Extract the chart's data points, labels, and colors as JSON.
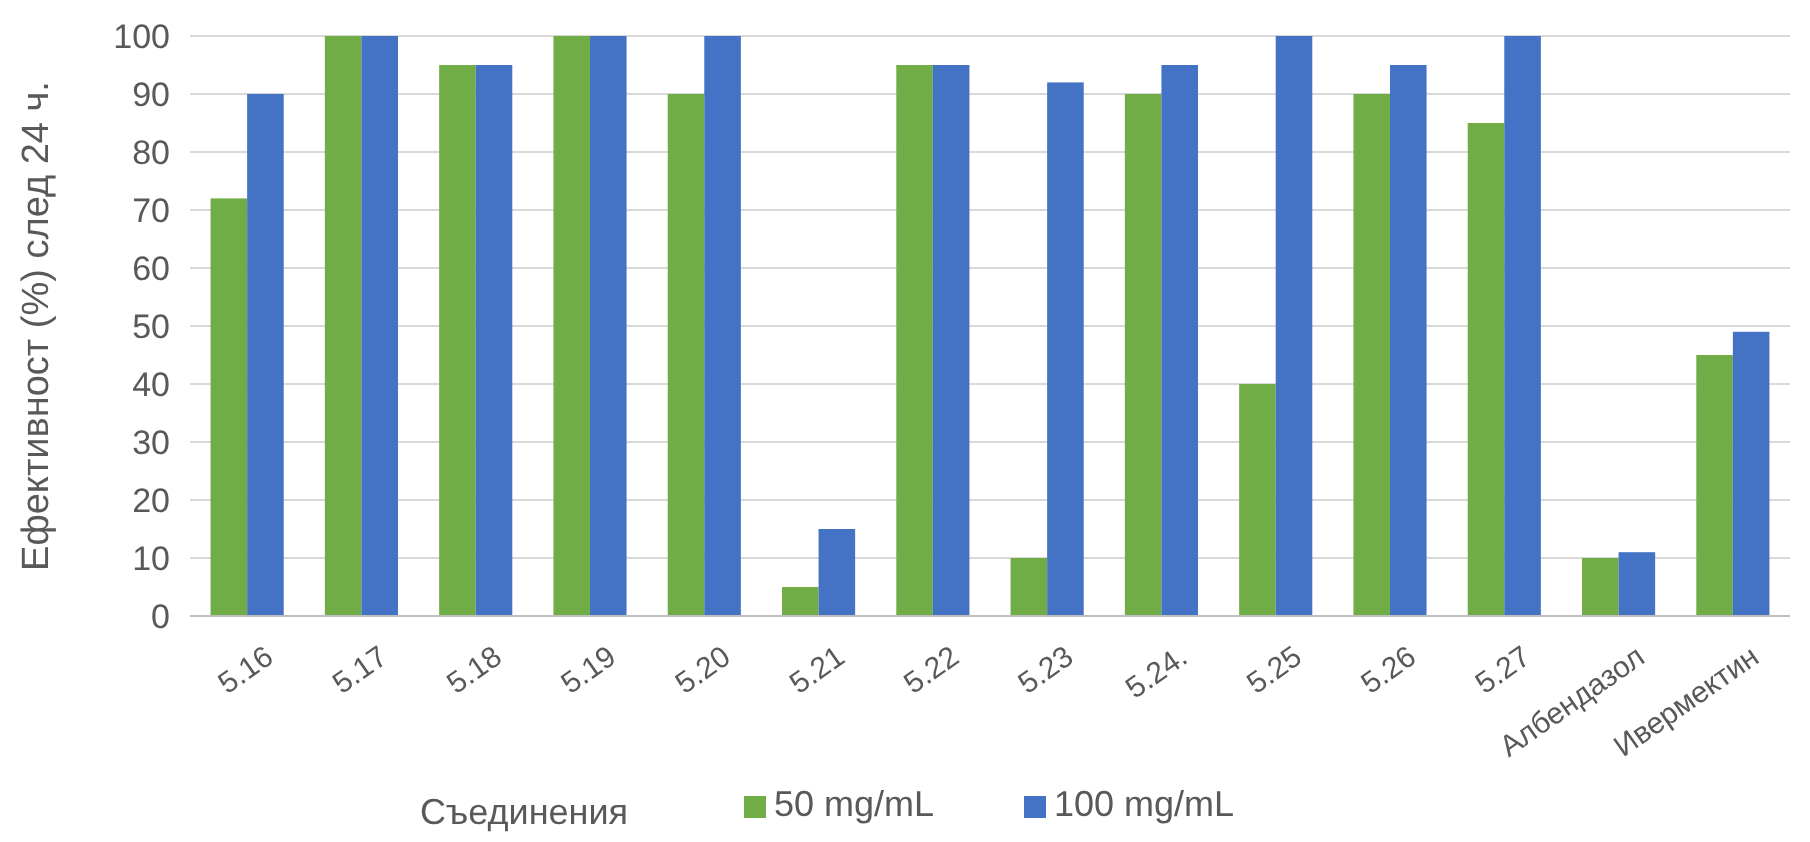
{
  "chart_data": {
    "type": "bar",
    "xlabel": "Съединения",
    "ylabel": "Ефективност (%) след 24 ч.",
    "categories": [
      "5.16",
      "5.17",
      "5.18",
      "5.19",
      "5.20",
      "5.21",
      "5.22",
      "5.23",
      "5.24.",
      "5.25",
      "5.26",
      "5.27",
      "Албендазол",
      "Ивермектин"
    ],
    "series": [
      {
        "name": "50 mg/mL",
        "color": "#70ad47",
        "values": [
          72,
          100,
          95,
          100,
          90,
          5,
          95,
          10,
          90,
          40,
          90,
          85,
          10,
          45
        ]
      },
      {
        "name": "100 mg/mL",
        "color": "#4472c4",
        "values": [
          90,
          100,
          95,
          100,
          100,
          15,
          95,
          92,
          95,
          100,
          95,
          100,
          11,
          49
        ]
      }
    ],
    "ylim": [
      0,
      100
    ],
    "yticks": [
      0,
      10,
      20,
      30,
      40,
      50,
      60,
      70,
      80,
      90,
      100
    ],
    "grid": "y",
    "legend": "bottom"
  }
}
